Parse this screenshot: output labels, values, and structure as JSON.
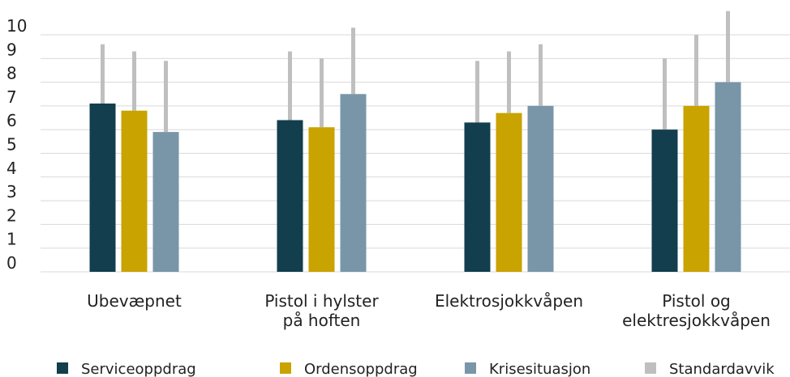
{
  "chart_data": {
    "type": "bar",
    "categories": [
      "Ubevæpnet",
      "Pistol i hylster\npå hoften",
      "Elektrosjokkvåpen",
      "Pistol og\nelektresjokkvåpen"
    ],
    "series": [
      {
        "name": "Serviceoppdrag",
        "color": "#123e4e",
        "values": [
          7.1,
          6.4,
          6.3,
          6.0
        ],
        "errors": [
          2.5,
          2.9,
          2.6,
          3.0
        ]
      },
      {
        "name": "Ordensoppdrag",
        "color": "#c9a300",
        "values": [
          6.8,
          6.1,
          6.7,
          7.0
        ],
        "errors": [
          2.5,
          2.9,
          2.6,
          3.0
        ]
      },
      {
        "name": "Krisesituasjon",
        "color": "#7896a8",
        "values": [
          5.9,
          7.5,
          7.0,
          8.0
        ],
        "errors": [
          3.0,
          2.8,
          2.6,
          3.0
        ]
      }
    ],
    "error_name": "Standardavvik",
    "error_color": "#bfbfbf",
    "ylim": [
      0,
      10
    ],
    "yticks": [
      0,
      1,
      2,
      3,
      4,
      5,
      6,
      7,
      8,
      9,
      10
    ],
    "grid": true
  }
}
